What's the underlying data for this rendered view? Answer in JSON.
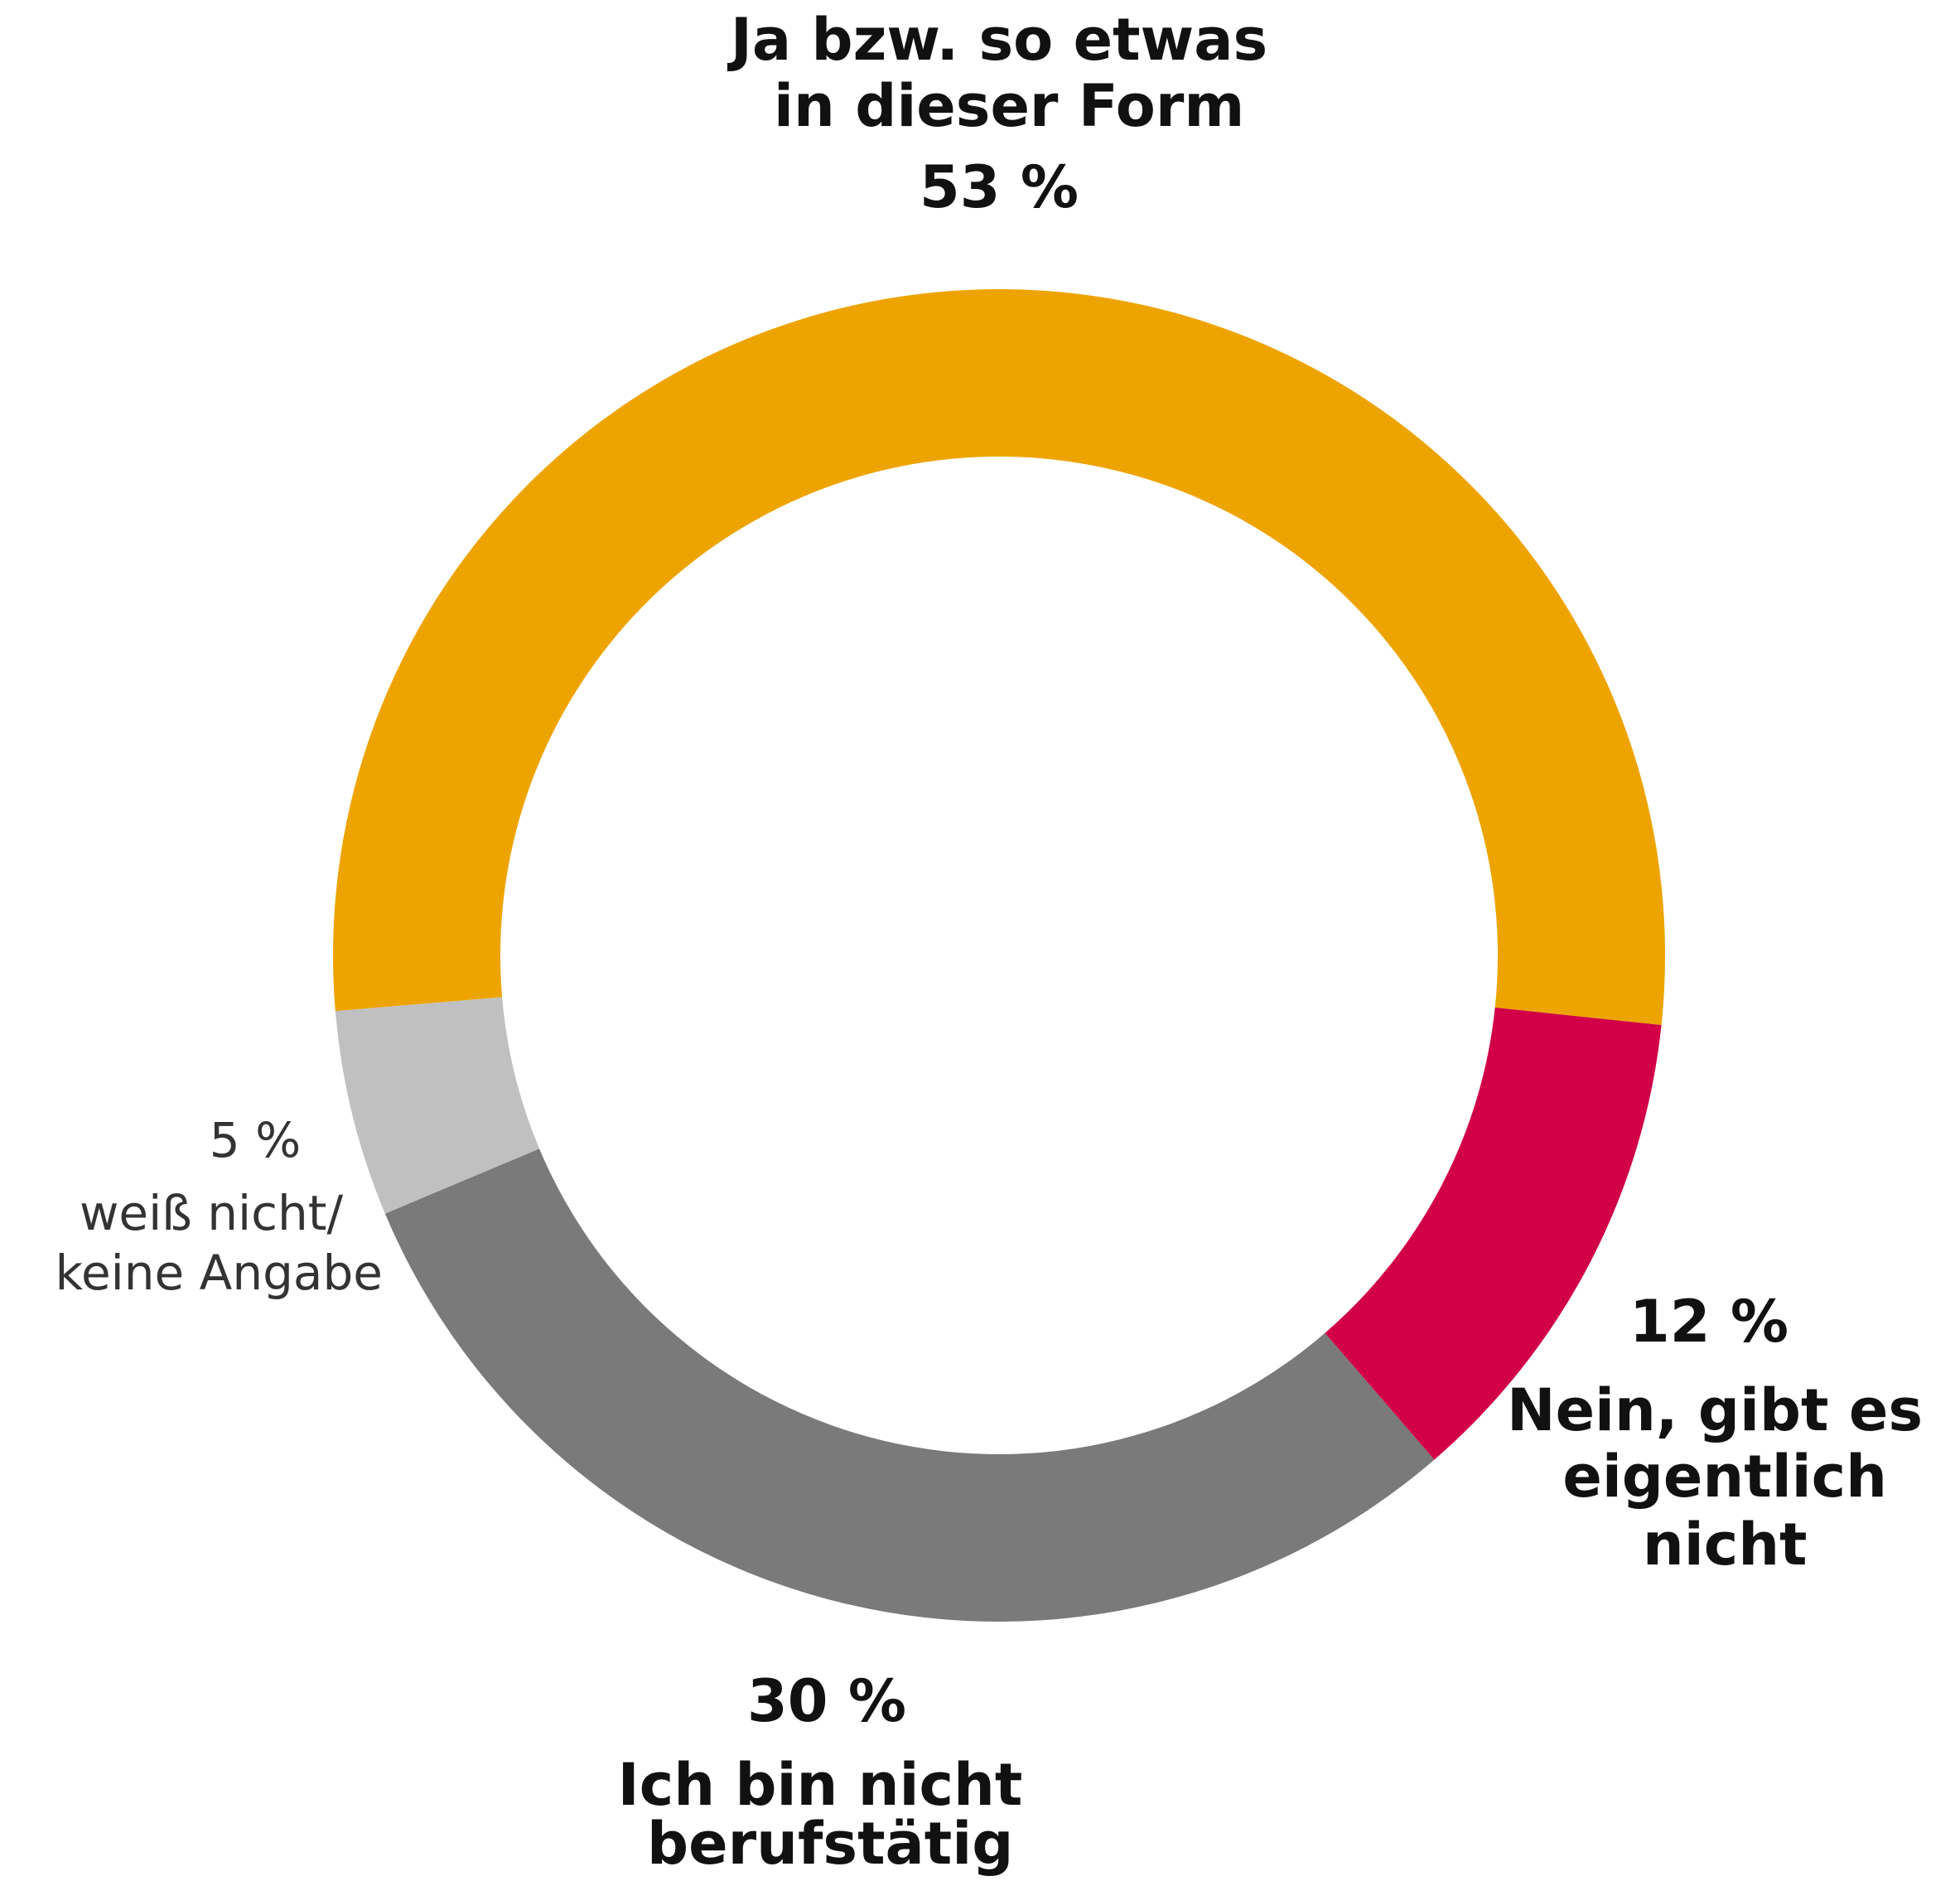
{
  "chart_data": {
    "type": "donut",
    "categories": [
      "Ja bzw. so etwas in dieser Form",
      "Nein, gibt es eigentlich nicht",
      "Ich bin nicht berufstätig",
      "weiß nicht/ keine Angabe"
    ],
    "values": [
      53,
      12,
      30,
      5
    ],
    "value_labels": [
      "53 %",
      "12 %",
      "30 %",
      "5 %"
    ],
    "colors": [
      "#eea400",
      "#d10047",
      "#7a7a7a",
      "#c0c0c0"
    ]
  }
}
